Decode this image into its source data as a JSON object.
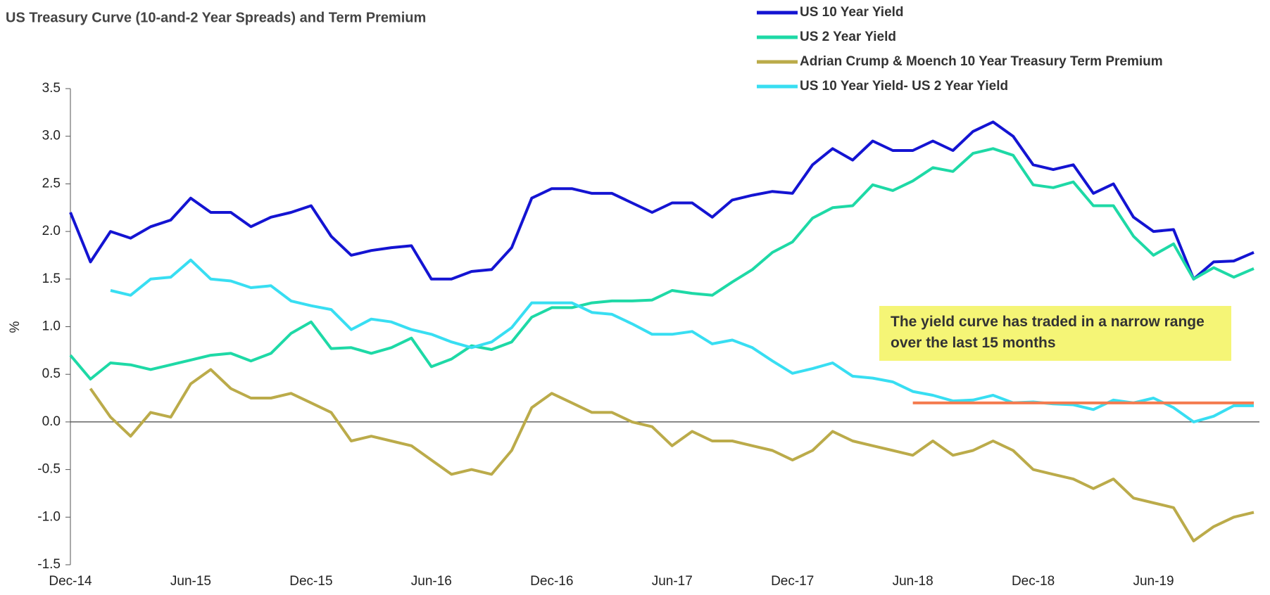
{
  "chart_data": {
    "type": "line",
    "title": "US Treasury Curve (10-and-2 Year Spreads) and Term Premium",
    "y_label": "%",
    "categories": [
      "Dec-14",
      "Jan-15",
      "Feb-15",
      "Mar-15",
      "Apr-15",
      "May-15",
      "Jun-15",
      "Jul-15",
      "Aug-15",
      "Sep-15",
      "Oct-15",
      "Nov-15",
      "Dec-15",
      "Jan-16",
      "Feb-16",
      "Mar-16",
      "Apr-16",
      "May-16",
      "Jun-16",
      "Jul-16",
      "Aug-16",
      "Sep-16",
      "Oct-16",
      "Nov-16",
      "Dec-16",
      "Jan-17",
      "Feb-17",
      "Mar-17",
      "Apr-17",
      "May-17",
      "Jun-17",
      "Jul-17",
      "Aug-17",
      "Sep-17",
      "Oct-17",
      "Nov-17",
      "Dec-17",
      "Jan-18",
      "Feb-18",
      "Mar-18",
      "Apr-18",
      "May-18",
      "Jun-18",
      "Jul-18",
      "Aug-18",
      "Sep-18",
      "Oct-18",
      "Nov-18",
      "Dec-18",
      "Jan-19",
      "Feb-19",
      "Mar-19",
      "Apr-19",
      "May-19",
      "Jun-19",
      "Jul-19",
      "Aug-19",
      "Sep-19",
      "Oct-19",
      "Nov-19"
    ],
    "xticks": [
      "Dec-14",
      "Jun-15",
      "Dec-15",
      "Jun-16",
      "Dec-16",
      "Jun-17",
      "Dec-17",
      "Jun-18",
      "Dec-18",
      "Jun-19"
    ],
    "series": [
      {
        "name": "US 10 Year Yield",
        "color": "#1414d2",
        "values": [
          2.2,
          1.68,
          2.0,
          1.93,
          2.05,
          2.12,
          2.35,
          2.2,
          2.2,
          2.05,
          2.15,
          2.2,
          2.27,
          1.95,
          1.75,
          1.8,
          1.83,
          1.85,
          1.5,
          1.5,
          1.58,
          1.6,
          1.83,
          2.35,
          2.45,
          2.45,
          2.4,
          2.4,
          2.3,
          2.2,
          2.3,
          2.3,
          2.15,
          2.33,
          2.38,
          2.42,
          2.4,
          2.7,
          2.87,
          2.75,
          2.95,
          2.85,
          2.85,
          2.95,
          2.85,
          3.05,
          3.15,
          3.0,
          2.7,
          2.65,
          2.7,
          2.4,
          2.5,
          2.15,
          2.0,
          2.02,
          1.5,
          1.68,
          1.69,
          1.78
        ]
      },
      {
        "name": "US 2 Year Yield",
        "color": "#1ed9a6",
        "values": [
          0.7,
          0.45,
          0.62,
          0.6,
          0.55,
          0.6,
          0.65,
          0.7,
          0.72,
          0.64,
          0.72,
          0.93,
          1.05,
          0.77,
          0.78,
          0.72,
          0.78,
          0.88,
          0.58,
          0.66,
          0.8,
          0.76,
          0.84,
          1.1,
          1.2,
          1.2,
          1.25,
          1.27,
          1.27,
          1.28,
          1.38,
          1.35,
          1.33,
          1.47,
          1.6,
          1.78,
          1.89,
          2.14,
          2.25,
          2.27,
          2.49,
          2.43,
          2.53,
          2.67,
          2.63,
          2.82,
          2.87,
          2.8,
          2.49,
          2.46,
          2.52,
          2.27,
          2.27,
          1.95,
          1.75,
          1.87,
          1.5,
          1.62,
          1.52,
          1.61
        ]
      },
      {
        "name": "Adrian Crump & Moench 10 Year Treasury Term Premium",
        "color": "#bbab4a",
        "values": [
          null,
          0.35,
          0.05,
          -0.15,
          0.1,
          0.05,
          0.4,
          0.55,
          0.35,
          0.25,
          0.25,
          0.3,
          0.2,
          0.1,
          -0.2,
          -0.15,
          -0.2,
          -0.25,
          -0.4,
          -0.55,
          -0.5,
          -0.55,
          -0.3,
          0.15,
          0.3,
          0.2,
          0.1,
          0.1,
          0.0,
          -0.05,
          -0.25,
          -0.1,
          -0.2,
          -0.2,
          -0.25,
          -0.3,
          -0.4,
          -0.3,
          -0.1,
          -0.2,
          -0.25,
          -0.3,
          -0.35,
          -0.2,
          -0.35,
          -0.3,
          -0.2,
          -0.3,
          -0.5,
          -0.55,
          -0.6,
          -0.7,
          -0.6,
          -0.8,
          -0.85,
          -0.9,
          -1.25,
          -1.1,
          -1.0,
          -0.95
        ]
      },
      {
        "name": "US 10 Year Yield- US 2 Year Yield",
        "color": "#38def2",
        "values": [
          null,
          null,
          1.38,
          1.33,
          1.5,
          1.52,
          1.7,
          1.5,
          1.48,
          1.41,
          1.43,
          1.27,
          1.22,
          1.18,
          0.97,
          1.08,
          1.05,
          0.97,
          0.92,
          0.84,
          0.78,
          0.84,
          0.99,
          1.25,
          1.25,
          1.25,
          1.15,
          1.13,
          1.03,
          0.92,
          0.92,
          0.95,
          0.82,
          0.86,
          0.78,
          0.64,
          0.51,
          0.56,
          0.62,
          0.48,
          0.46,
          0.42,
          0.32,
          0.28,
          0.22,
          0.23,
          0.28,
          0.2,
          0.21,
          0.19,
          0.18,
          0.13,
          0.23,
          0.2,
          0.25,
          0.15,
          0.0,
          0.06,
          0.17,
          0.17
        ]
      }
    ],
    "reference_line": {
      "value": 0.2,
      "from": "Jun-18",
      "to": "Nov-19",
      "color": "#f47b4f"
    },
    "annotation": "The yield curve has traded in a narrow range over the last 15 months",
    "ylim": [
      -1.5,
      3.5
    ],
    "yticks": [
      -1.5,
      {
        "value": -1,
        "label": "-1.0"
      },
      -0.5,
      {
        "value": 0,
        "label": "0.0"
      },
      0.5,
      {
        "value": 1,
        "label": "1.0"
      },
      1.5,
      {
        "value": 2,
        "label": "2.0"
      },
      2.5,
      {
        "value": 3,
        "label": "3.0"
      },
      3.5
    ]
  }
}
